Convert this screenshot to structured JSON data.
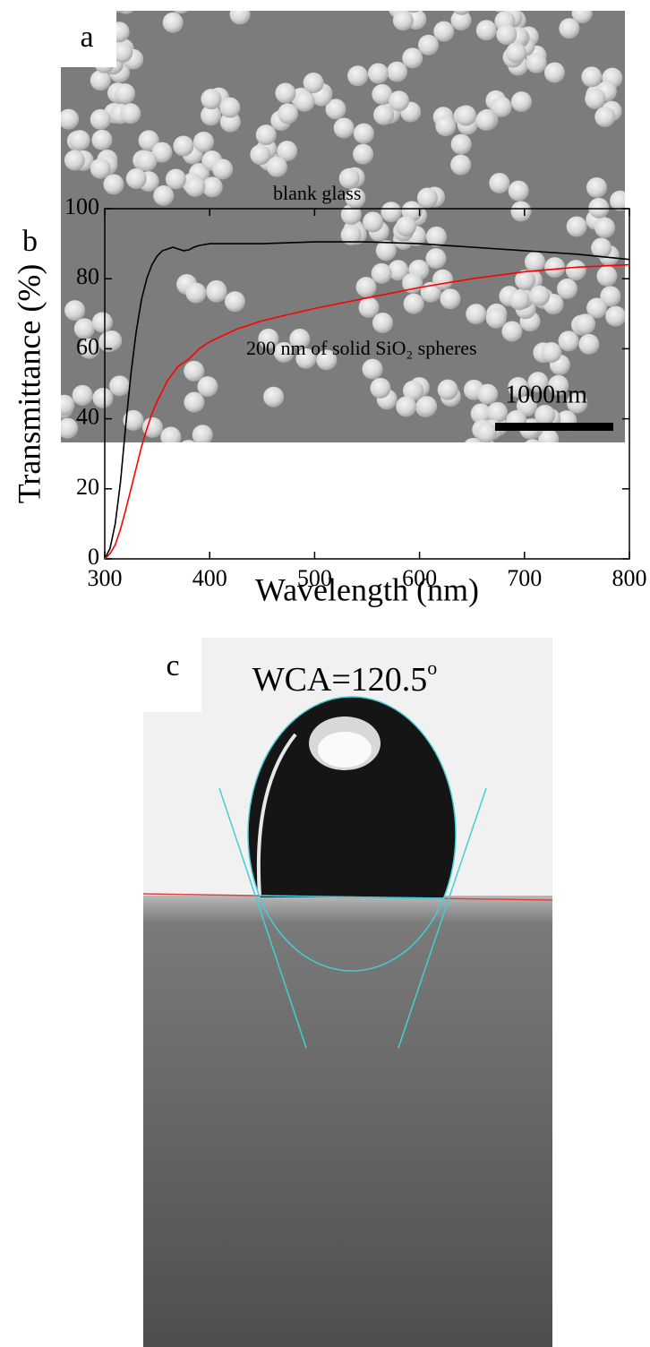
{
  "panel_a": {
    "label": "a",
    "scale_bar": "1000nm"
  },
  "panel_b": {
    "label": "b"
  },
  "panel_c": {
    "label": "c",
    "wca": {
      "text": "WCA=120.5",
      "superscript": "o"
    }
  },
  "chart_data": {
    "type": "line",
    "x_label": "Wavelength (nm)",
    "y_label": "Transmittance (%)",
    "x": [
      300,
      305,
      310,
      315,
      320,
      325,
      330,
      335,
      340,
      345,
      350,
      355,
      360,
      365,
      370,
      375,
      380,
      385,
      390,
      400,
      425,
      450,
      500,
      550,
      600,
      650,
      700,
      750,
      800
    ],
    "series": [
      {
        "name": "blank glass",
        "color": "#000000",
        "values": [
          0,
          3,
          10,
          22,
          38,
          53,
          65,
          74,
          80,
          84,
          86.5,
          88,
          88.5,
          89,
          88.5,
          88,
          88.2,
          89,
          89.5,
          90,
          90,
          90,
          90.5,
          90.5,
          90,
          89,
          88,
          87,
          85.5
        ]
      },
      {
        "name": "200 nm of solid SiO₂ spheres",
        "color": "#ff0000",
        "values": [
          0,
          1.5,
          4,
          8.5,
          14,
          20,
          26,
          32,
          37,
          41.5,
          45,
          48,
          51,
          53,
          55,
          56,
          57,
          58.5,
          60,
          62,
          65.5,
          68,
          71.5,
          74.5,
          77.5,
          80,
          82,
          83.3,
          84
        ]
      }
    ],
    "xlim": [
      300,
      800
    ],
    "xticks": [
      300,
      400,
      500,
      600,
      700,
      800
    ],
    "ylim": [
      0,
      100
    ],
    "yticks": [
      0,
      20,
      40,
      60,
      80,
      100
    ]
  }
}
